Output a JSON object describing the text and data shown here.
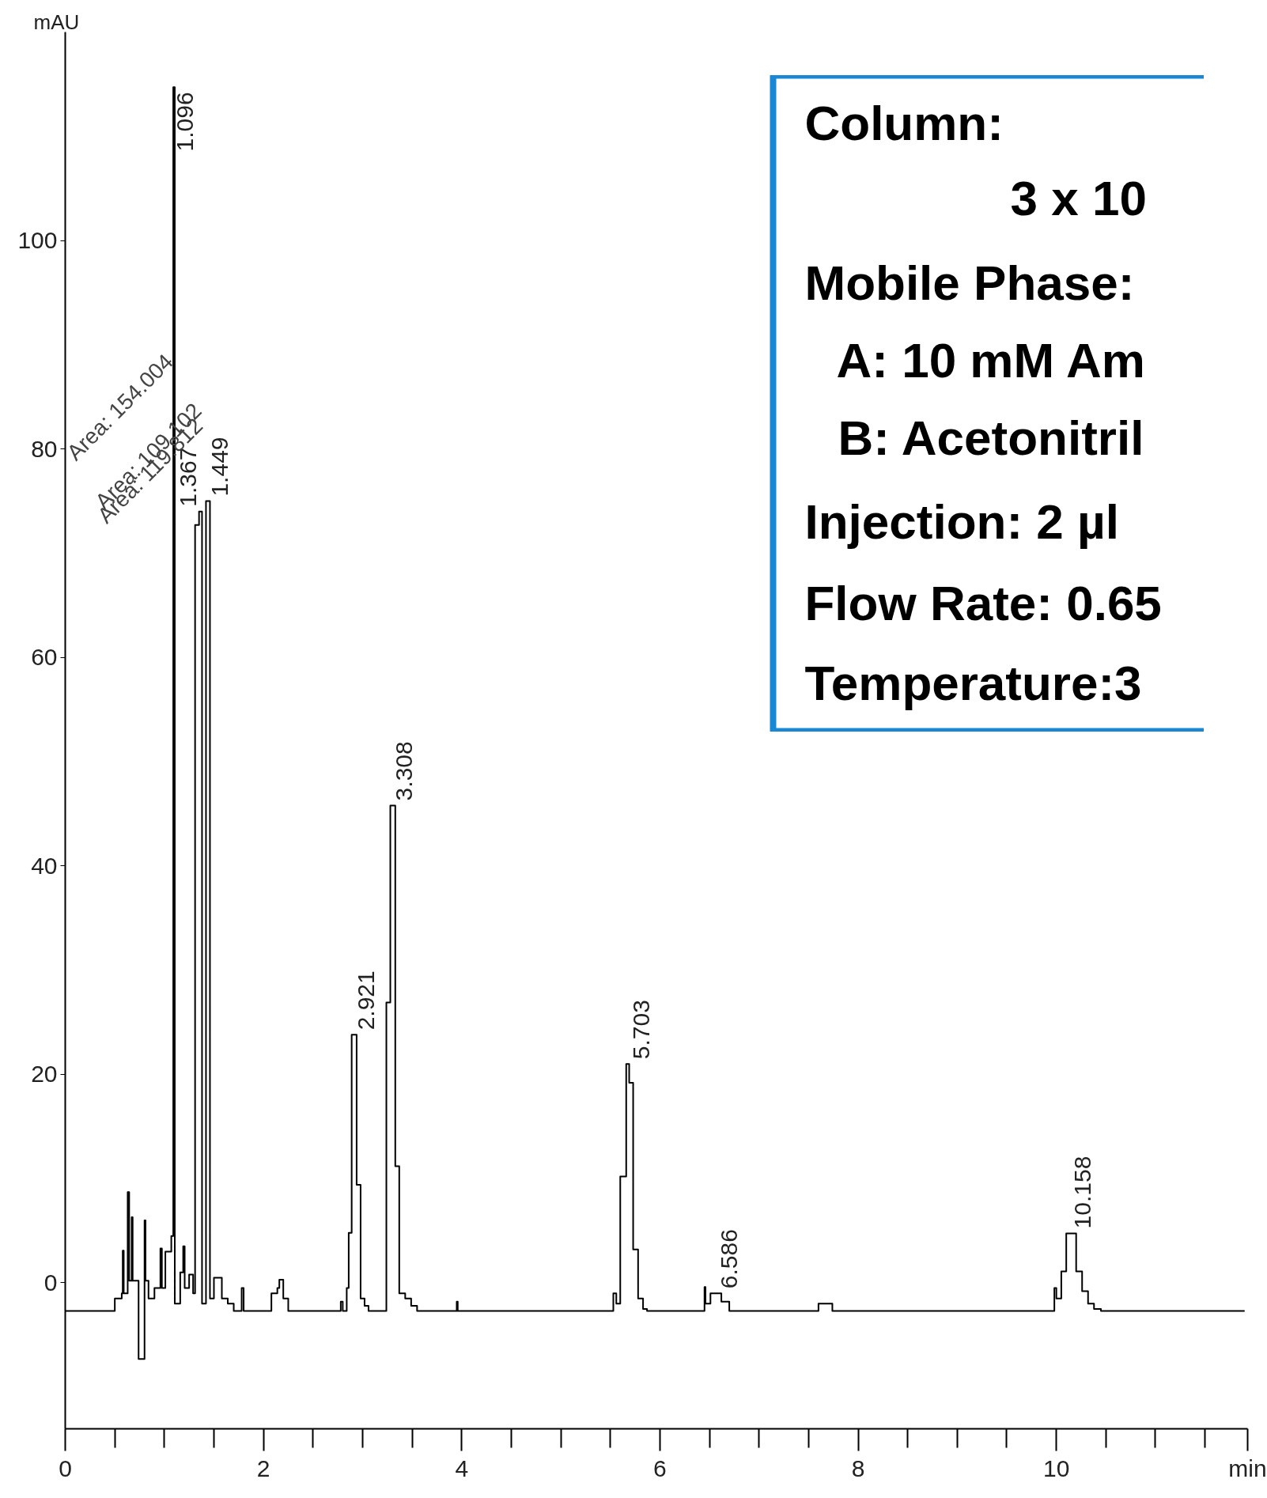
{
  "chart_data": [
    {
      "type": "step",
      "xlabel": "min",
      "ylabel": "mAU",
      "x": [
        0,
        0.5,
        0.57,
        0.58,
        0.59,
        0.63,
        0.645,
        0.67,
        0.68,
        0.74,
        0.8,
        0.81,
        0.84,
        0.9,
        0.96,
        0.975,
        1.01,
        1.07,
        1.09,
        1.105,
        1.16,
        1.19,
        1.205,
        1.25,
        1.29,
        1.31,
        1.35,
        1.38,
        1.42,
        1.46,
        1.5,
        1.58,
        1.64,
        1.7,
        1.78,
        1.8,
        2.08,
        2.14,
        2.16,
        2.2,
        2.25,
        2.78,
        2.8,
        2.84,
        2.86,
        2.89,
        2.94,
        2.98,
        3.02,
        3.06,
        3.24,
        3.28,
        3.33,
        3.37,
        3.43,
        3.49,
        3.55,
        3.95,
        3.96,
        5.53,
        5.56,
        5.6,
        5.66,
        5.69,
        5.73,
        5.78,
        5.83,
        5.87,
        6.45,
        6.46,
        6.51,
        6.62,
        6.7,
        7.6,
        7.74,
        9.98,
        10.0,
        10.05,
        10.1,
        10.2,
        10.26,
        10.32,
        10.38,
        10.45,
        11.9
      ],
      "series": [
        {
          "color": "#000000",
          "values": [
            -2.7,
            -1.5,
            -1.0,
            3.1,
            -1.0,
            8.7,
            0.2,
            6.3,
            0.2,
            -7.3,
            6.0,
            0.2,
            -1.5,
            -0.5,
            3.3,
            -0.5,
            3.0,
            4.5,
            114.7,
            -2.0,
            1.0,
            3.5,
            -0.5,
            0.8,
            -1.0,
            72.7,
            74.0,
            -2.0,
            75.0,
            -1.5,
            0.5,
            -1.5,
            -2.0,
            -2.7,
            -0.5,
            -2.7,
            -1.0,
            -0.5,
            0.3,
            -1.5,
            -2.7,
            -1.8,
            -2.7,
            -0.5,
            4.8,
            23.8,
            9.4,
            -1.5,
            -2.2,
            -2.7,
            26.9,
            45.8,
            11.2,
            -1.0,
            -1.5,
            -2.2,
            -2.7,
            -1.8,
            -2.7,
            -1.0,
            -2.0,
            10.2,
            21.0,
            19.2,
            3.2,
            -1.5,
            -2.5,
            -2.7,
            -0.4,
            -2.0,
            -1.0,
            -1.8,
            -2.7,
            -2.0,
            -2.7,
            -0.5,
            -1.5,
            1.1,
            4.75,
            1.1,
            -0.8,
            -2.0,
            -2.5,
            -2.7,
            -2.7
          ]
        }
      ],
      "xlim": [
        0,
        11.93
      ],
      "ylim": [
        -14,
        120
      ],
      "xticks": [
        0,
        2,
        4,
        6,
        8,
        10
      ],
      "yticks": [
        0,
        20,
        40,
        60,
        80,
        100
      ],
      "grid": false,
      "annotations": [
        {
          "text": "1.096",
          "x": 1.096,
          "y": 114.7
        },
        {
          "text": "1.367",
          "x": 1.367,
          "y": 74.0
        },
        {
          "text": "1.449",
          "x": 1.449,
          "y": 75.0
        },
        {
          "text": "2.921",
          "x": 2.921,
          "y": 23.8
        },
        {
          "text": "3.308",
          "x": 3.308,
          "y": 45.8
        },
        {
          "text": "5.703",
          "x": 5.703,
          "y": 21.0
        },
        {
          "text": "6.586",
          "x": 6.586,
          "y": -1.0
        },
        {
          "text": "10.158",
          "x": 10.158,
          "y": 4.75
        },
        "Area: 154.004",
        "Area: 109.102",
        "Area: 119.812"
      ]
    },
    {
      "type": "other",
      "color": "#1a87d4",
      "annotations": [
        "Column:",
        "3 x 10",
        "Mobile Phase:",
        "A: 10 mM Am",
        "B: Acetonitril",
        "Injection: 2 µl",
        "Flow Rate: 0.65",
        "Temperature:3"
      ]
    }
  ]
}
